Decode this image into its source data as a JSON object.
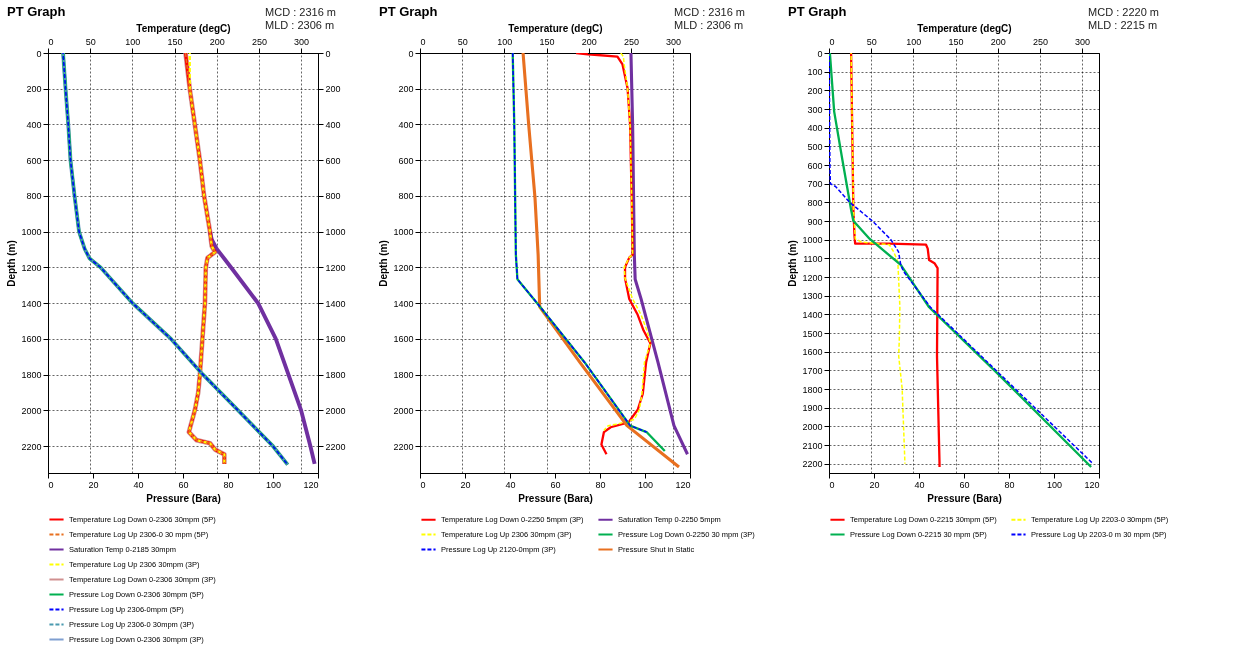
{
  "chart_data": [
    {
      "type": "line",
      "title": "PT Graph",
      "annotations": [
        "MCD : 2316 m",
        "MLD : 2306 m"
      ],
      "xlabel": "Pressure (Bara)",
      "x2label": "Temperature (degC)",
      "ylabel": "Depth (m)",
      "xlim": [
        0,
        120
      ],
      "xticks": [
        0,
        20,
        40,
        60,
        80,
        100,
        120
      ],
      "x2lim": [
        0,
        320
      ],
      "x2ticks": [
        0,
        50,
        100,
        150,
        200,
        250,
        300
      ],
      "ylim": [
        2350,
        0
      ],
      "yticks": [
        0,
        200,
        400,
        600,
        800,
        1000,
        1200,
        1400,
        1600,
        1800,
        2000,
        2200
      ],
      "y2lim": [
        2350,
        0
      ],
      "y2ticks": [
        0,
        200,
        400,
        600,
        800,
        1000,
        1200,
        1400,
        1600,
        1800,
        2000,
        2200
      ],
      "grid": true,
      "legend": "bottom",
      "series": [
        {
          "name": "Temperature Log Down 0-2306 30mpm (5P)",
          "color": "#ff0000",
          "line_style": "solid",
          "axis": "x2",
          "x": [
            163,
            168,
            174,
            180,
            185,
            192,
            194,
            198,
            189,
            187,
            186,
            183,
            180,
            178,
            174,
            168,
            167,
            176,
            192,
            198,
            209,
            209
          ],
          "values": [
            0,
            200,
            400,
            600,
            800,
            1000,
            1080,
            1114,
            1146,
            1200,
            1400,
            1600,
            1800,
            1900,
            2000,
            2103,
            2121,
            2166,
            2184,
            2219,
            2246,
            2299
          ]
        },
        {
          "name": "Temperature Log Up 2306-0 30 mpm (5P)",
          "color": "#e87020",
          "line_style": "dashed",
          "axis": "x2",
          "x": [
            163,
            168,
            174,
            180,
            185,
            192,
            194,
            198,
            189,
            187,
            186,
            183,
            180,
            178,
            174,
            168,
            167,
            176,
            192,
            198,
            209,
            209
          ],
          "values": [
            0,
            200,
            400,
            600,
            800,
            1000,
            1080,
            1114,
            1146,
            1200,
            1400,
            1600,
            1800,
            1900,
            2000,
            2103,
            2121,
            2166,
            2184,
            2219,
            2246,
            2299
          ]
        },
        {
          "name": "Saturation Temp 0-2185 30mpm",
          "color": "#7030a0",
          "line_style": "solid",
          "axis": "x2",
          "x": [
            192,
            194,
            200,
            217,
            249,
            270,
            285,
            300,
            311,
            316
          ],
          "values": [
            1000,
            1043,
            1096,
            1200,
            1400,
            1600,
            1800,
            2000,
            2200,
            2299
          ]
        },
        {
          "name": "Temperature Log Up 2306 30mpm (3P)",
          "color": "#ffff00",
          "line_style": "dashed",
          "axis": "x2",
          "x": [
            168,
            168,
            174,
            180,
            185,
            192,
            194,
            198,
            189,
            187,
            186,
            183,
            180,
            178,
            174,
            168,
            167,
            176,
            192,
            198,
            209,
            209
          ],
          "values": [
            0,
            200,
            400,
            600,
            800,
            1000,
            1080,
            1114,
            1146,
            1200,
            1400,
            1600,
            1800,
            1900,
            2000,
            2103,
            2121,
            2166,
            2184,
            2219,
            2246,
            2299
          ]
        },
        {
          "name": "Temperature Log Down 0-2306 30mpm (3P)",
          "color": "#d09090",
          "line_style": "solid",
          "axis": "x2",
          "x": [
            163,
            168,
            174,
            180,
            185,
            192,
            194,
            198,
            189,
            187,
            186,
            183,
            180,
            178,
            174,
            168,
            167,
            176,
            192,
            198,
            209,
            209
          ],
          "values": [
            0,
            200,
            400,
            600,
            800,
            1000,
            1080,
            1114,
            1146,
            1200,
            1400,
            1600,
            1800,
            1900,
            2000,
            2103,
            2121,
            2166,
            2184,
            2219,
            2246,
            2299
          ]
        },
        {
          "name": "Pressure Log Down 0-2306 30mpm (5P)",
          "color": "#00b050",
          "line_style": "solid",
          "x": [
            6.7,
            7.8,
            9,
            10,
            11.8,
            13.8,
            16.3,
            18.5,
            23.4,
            37.6,
            54.7,
            68.9,
            84.5,
            100,
            106.5
          ],
          "values": [
            0,
            200,
            400,
            600,
            800,
            1000,
            1096,
            1150,
            1200,
            1400,
            1600,
            1800,
            2000,
            2200,
            2303
          ]
        },
        {
          "name": "Pressure Log Up 2306-0mpm (5P)",
          "color": "#0000ff",
          "line_style": "dashed",
          "x": [
            6.7,
            7.8,
            9,
            10,
            11.8,
            13.8,
            16.3,
            18.5,
            23.4,
            37.6,
            54.7,
            68.9,
            84.5,
            100,
            106.5
          ],
          "values": [
            0,
            200,
            400,
            600,
            800,
            1000,
            1096,
            1150,
            1200,
            1400,
            1600,
            1800,
            2000,
            2200,
            2303
          ]
        },
        {
          "name": "Pressure Log Up 2306-0  30mpm (3P)",
          "color": "#4a9ab0",
          "line_style": "dashed",
          "x": [
            6.7,
            7.8,
            9,
            10,
            11.8,
            13.8,
            16.3,
            18.5,
            23.4,
            37.6,
            54.7,
            68.9,
            84.5,
            100,
            106.5
          ],
          "values": [
            0,
            200,
            400,
            600,
            800,
            1000,
            1096,
            1150,
            1200,
            1400,
            1600,
            1800,
            2000,
            2200,
            2303
          ]
        },
        {
          "name": "Pressure Log Down 0-2306 30mpm (3P)",
          "color": "#7f9fd0",
          "line_style": "solid",
          "x": [
            6.7,
            7.8,
            9,
            10,
            11.8,
            13.8,
            16.3,
            18.5,
            23.4,
            37.6,
            54.7,
            68.9,
            84.5,
            100,
            106.5
          ],
          "values": [
            0,
            200,
            400,
            600,
            800,
            1000,
            1096,
            1150,
            1200,
            1400,
            1600,
            1800,
            2000,
            2200,
            2303
          ]
        }
      ]
    },
    {
      "type": "line",
      "title": "PT Graph",
      "annotations": [
        "MCD : 2316 m",
        "MLD : 2306 m"
      ],
      "xlabel": "Pressure (Bara)",
      "x2label": "Temperature (degC)",
      "ylabel": "Depth (m)",
      "xlim": [
        0,
        120
      ],
      "xticks": [
        0,
        20,
        40,
        60,
        80,
        100,
        120
      ],
      "x2lim": [
        0,
        320
      ],
      "x2ticks": [
        0,
        50,
        100,
        150,
        200,
        250,
        300
      ],
      "ylim": [
        2350,
        0
      ],
      "yticks": [
        0,
        200,
        400,
        600,
        800,
        1000,
        1200,
        1400,
        1600,
        1800,
        2000,
        2200
      ],
      "grid": true,
      "legend": "bottom",
      "series": [
        {
          "name": "Temperature Log Down 0-2250 5mpm (3P)",
          "color": "#ff0000",
          "line_style": "solid",
          "axis": "x2",
          "x": [
            185,
            199,
            234,
            240,
            246,
            249,
            251,
            252,
            248,
            243,
            243,
            248,
            258,
            265,
            273,
            268,
            264,
            258,
            247,
            226,
            218,
            215,
            221
          ],
          "values": [
            0,
            7,
            20,
            64,
            197,
            401,
            844,
            1128,
            1145,
            1199,
            1261,
            1376,
            1465,
            1553,
            1624,
            1730,
            1908,
            1996,
            2067,
            2094,
            2121,
            2191,
            2245
          ]
        },
        {
          "name": "Saturation Temp 0-2250 5mpm",
          "color": "#7030a0",
          "line_style": "solid",
          "axis": "x2",
          "x": [
            250,
            252,
            254,
            255,
            262,
            282,
            301,
            317
          ],
          "values": [
            0,
            401,
            1128,
            1266,
            1376,
            1730,
            2085,
            2245
          ]
        },
        {
          "name": "Temperature Log Up 2306 30mpm (3P)",
          "color": "#ffff00",
          "line_style": "dashed",
          "axis": "x2",
          "x": [
            238,
            241,
            242,
            246,
            249,
            251,
            252,
            248,
            242,
            243,
            252,
            262,
            269,
            273,
            266,
            263,
            260,
            254,
            234,
            223,
            218
          ],
          "values": [
            0,
            20,
            64,
            197,
            401,
            844,
            1128,
            1145,
            1199,
            1261,
            1376,
            1465,
            1553,
            1624,
            1730,
            1908,
            1996,
            2050,
            2076,
            2085,
            2112
          ]
        },
        {
          "name": "Pressure Log Down 0-2250 30 mpm (3P)",
          "color": "#00b050",
          "line_style": "solid",
          "x": [
            41.2,
            41.9,
            42.6,
            43.3,
            52.8,
            73.1,
            93.4,
            100.7,
            108.8
          ],
          "values": [
            0,
            401,
            1128,
            1266,
            1411,
            1730,
            2085,
            2121,
            2227
          ]
        },
        {
          "name": "Pressure Log Up 2120-0mpm (3P)",
          "color": "#0000ff",
          "line_style": "dashed",
          "x": [
            41.2,
            41.9,
            42.6,
            43.3,
            52.8,
            73.1,
            93.4,
            100.7
          ],
          "values": [
            0,
            401,
            1128,
            1266,
            1411,
            1730,
            2085,
            2121
          ]
        },
        {
          "name": "Pressure Shut in Static",
          "color": "#e87020",
          "line_style": "solid",
          "x": [
            45.8,
            48.3,
            51.1,
            52.5,
            53.2,
            71,
            92,
            115.1
          ],
          "values": [
            0,
            401,
            809,
            1128,
            1420,
            1730,
            2085,
            2316
          ]
        }
      ]
    },
    {
      "type": "line",
      "title": "PT Graph",
      "annotations": [
        "MCD : 2220 m",
        "MLD : 2215 m"
      ],
      "xlabel": "Pressure (Bara)",
      "x2label": "Temperature (degC)",
      "ylabel": "Depth (m)",
      "xlim": [
        0,
        120
      ],
      "xticks": [
        0,
        20,
        40,
        60,
        80,
        100,
        120
      ],
      "x2lim": [
        0,
        320
      ],
      "x2ticks": [
        0,
        50,
        100,
        150,
        200,
        250,
        300
      ],
      "ylim": [
        2250,
        0
      ],
      "yticks": [
        0,
        100,
        200,
        300,
        400,
        500,
        600,
        700,
        800,
        900,
        1000,
        1100,
        1200,
        1300,
        1400,
        1500,
        1600,
        1700,
        1800,
        1900,
        2000,
        2100,
        2200
      ],
      "grid": true,
      "legend": "bottom",
      "series": [
        {
          "name": "Temperature Log Down 0-2215 30mpm (5P)",
          "color": "#ff0000",
          "line_style": "solid",
          "axis": "x2",
          "x": [
            26.2,
            27.2,
            28.9,
            30.2,
            30.6,
            31,
            71.5,
            115,
            117,
            118.6,
            125,
            128.7,
            128,
            131,
            131
          ],
          "values": [
            0,
            314,
            838,
            978,
            1000,
            1021,
            1021,
            1027,
            1048,
            1109,
            1126,
            1152,
            1624,
            2200,
            2218
          ]
        },
        {
          "name": "Temperature Log Up 2203-0 30mpm (5P)",
          "color": "#ffff00",
          "line_style": "dashed",
          "axis": "x2",
          "x": [
            26.2,
            29,
            31.2,
            38.6,
            71.5,
            76.6,
            81.6,
            84,
            83.3,
            82.6,
            86.7,
            90
          ],
          "values": [
            0,
            838,
            995,
            1013,
            1027,
            1065,
            1118,
            1362,
            1537,
            1624,
            1798,
            2200
          ]
        },
        {
          "name": "Pressure Log Down 0-2215 30 mpm (5P)",
          "color": "#00b050",
          "line_style": "solid",
          "x": [
            0.4,
            2.3,
            6,
            9.8,
            10.8,
            18,
            31.9,
            44.5,
            74.4,
            116.5
          ],
          "values": [
            0,
            314,
            576,
            838,
            899,
            995,
            1135,
            1362,
            1711,
            2218
          ]
        },
        {
          "name": "Pressure Log Up 2203-0 m 30 mpm (5P)",
          "color": "#0000ff",
          "line_style": "dashed",
          "x": [
            0.1,
            0.4,
            0.6,
            2.9,
            9.2,
            19.3,
            27.5,
            30.9,
            31.9,
            33.1,
            45.1,
            117.3
          ],
          "values": [
            0,
            600,
            700,
            715,
            800,
            900,
            1000,
            1065,
            1135,
            1170,
            1362,
            2200
          ]
        }
      ]
    }
  ]
}
